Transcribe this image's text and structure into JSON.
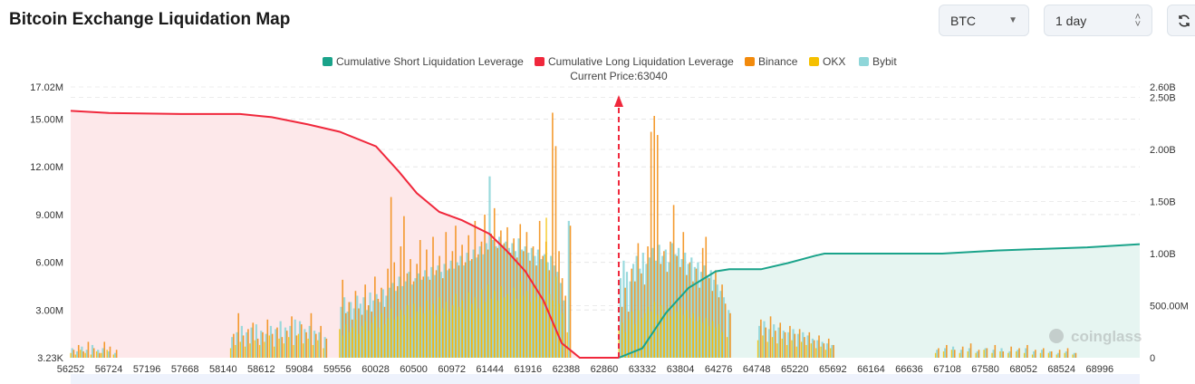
{
  "header": {
    "title": "Bitcoin Exchange Liquidation Map",
    "coin_select": "BTC",
    "range_select": "1 day",
    "refresh_icon": "refresh-icon"
  },
  "chart_data": {
    "type": "bar+line",
    "title": "Bitcoin Exchange Liquidation Map",
    "current_price_label": "Current Price:63040",
    "current_price": 63040,
    "watermark": "coinglass",
    "legend": [
      {
        "name": "Cumulative Short Liquidation Leverage",
        "color": "#1aa38a"
      },
      {
        "name": "Cumulative Long Liquidation Leverage",
        "color": "#f0283c"
      },
      {
        "name": "Binance",
        "color": "#f28a0c"
      },
      {
        "name": "OKX",
        "color": "#f5c000"
      },
      {
        "name": "Bybit",
        "color": "#8fd6d9"
      }
    ],
    "x_ticks": [
      "56252",
      "56724",
      "57196",
      "57668",
      "58140",
      "58612",
      "59084",
      "59556",
      "60028",
      "60500",
      "60972",
      "61444",
      "61916",
      "62388",
      "62860",
      "63332",
      "63804",
      "64276",
      "64748",
      "65220",
      "65692",
      "66164",
      "66636",
      "67108",
      "67580",
      "68052",
      "68524",
      "68996"
    ],
    "xlim": [
      56252,
      69492
    ],
    "y_left": {
      "ticks": [
        {
          "label": "3.23K",
          "value": 0.00323
        },
        {
          "label": "3.00M",
          "value": 3
        },
        {
          "label": "6.00M",
          "value": 6
        },
        {
          "label": "9.00M",
          "value": 9
        },
        {
          "label": "12.00M",
          "value": 12
        },
        {
          "label": "15.00M",
          "value": 15
        },
        {
          "label": "17.02M",
          "value": 17.02
        }
      ],
      "ylim": [
        0,
        17.02
      ],
      "unit": "M"
    },
    "y_right": {
      "ticks": [
        {
          "label": "0",
          "value": 0
        },
        {
          "label": "500.00M",
          "value": 0.5
        },
        {
          "label": "1.00B",
          "value": 1
        },
        {
          "label": "1.50B",
          "value": 1.5
        },
        {
          "label": "2.00B",
          "value": 2
        },
        {
          "label": "2.50B",
          "value": 2.5
        },
        {
          "label": "2.60B",
          "value": 2.6
        }
      ],
      "ylim": [
        0,
        2.6
      ],
      "unit": "B"
    },
    "long_cumulative": [
      [
        56252,
        2.37
      ],
      [
        56724,
        2.35
      ],
      [
        57620,
        2.34
      ],
      [
        58350,
        2.34
      ],
      [
        58743,
        2.31
      ],
      [
        59192,
        2.24
      ],
      [
        59584,
        2.17
      ],
      [
        60033,
        2.03
      ],
      [
        60314,
        1.79
      ],
      [
        60538,
        1.58
      ],
      [
        60818,
        1.4
      ],
      [
        61099,
        1.32
      ],
      [
        61436,
        1.19
      ],
      [
        61660,
        1.02
      ],
      [
        61884,
        0.83
      ],
      [
        62108,
        0.55
      ],
      [
        62333,
        0.14
      ],
      [
        62557,
        0.0
      ],
      [
        63040,
        0.0
      ]
    ],
    "short_cumulative": [
      [
        63040,
        0.0
      ],
      [
        63332,
        0.09
      ],
      [
        63624,
        0.43
      ],
      [
        63904,
        0.67
      ],
      [
        64241,
        0.83
      ],
      [
        64409,
        0.85
      ],
      [
        64802,
        0.85
      ],
      [
        65138,
        0.91
      ],
      [
        65475,
        0.98
      ],
      [
        65587,
        1.0
      ],
      [
        67046,
        1.0
      ],
      [
        67719,
        1.03
      ],
      [
        68841,
        1.06
      ],
      [
        69492,
        1.09
      ]
    ],
    "bars_columns": [
      "price",
      "binance",
      "okx",
      "bybit"
    ],
    "bars": [
      [
        56270,
        0.5,
        0.3,
        0.6
      ],
      [
        56330,
        0.8,
        0.2,
        0.4
      ],
      [
        56390,
        0.4,
        0.5,
        0.7
      ],
      [
        56450,
        1.0,
        0.3,
        0.5
      ],
      [
        56520,
        0.6,
        0.2,
        0.8
      ],
      [
        56590,
        0.3,
        0.4,
        0.5
      ],
      [
        56650,
        1.0,
        0.3,
        0.6
      ],
      [
        56720,
        0.7,
        0.5,
        0.4
      ],
      [
        56800,
        0.5,
        0.2,
        0.3
      ],
      [
        58250,
        1.5,
        0.6,
        1.3
      ],
      [
        58310,
        2.8,
        0.8,
        1.6
      ],
      [
        58370,
        1.4,
        1.0,
        2.0
      ],
      [
        58430,
        1.8,
        0.7,
        1.6
      ],
      [
        58490,
        2.2,
        0.9,
        1.9
      ],
      [
        58550,
        1.2,
        1.1,
        2.1
      ],
      [
        58610,
        1.6,
        0.8,
        1.7
      ],
      [
        58670,
        2.4,
        1.0,
        1.5
      ],
      [
        58730,
        1.5,
        1.4,
        2.0
      ],
      [
        58790,
        1.9,
        0.7,
        1.8
      ],
      [
        58850,
        1.3,
        1.2,
        2.3
      ],
      [
        58910,
        1.7,
        0.9,
        1.9
      ],
      [
        58970,
        2.6,
        1.3,
        2.0
      ],
      [
        59030,
        1.4,
        0.8,
        2.4
      ],
      [
        59090,
        2.1,
        1.5,
        2.3
      ],
      [
        59150,
        1.6,
        0.9,
        1.8
      ],
      [
        59210,
        2.8,
        1.2,
        2.0
      ],
      [
        59270,
        1.5,
        0.8,
        1.7
      ],
      [
        59330,
        2.0,
        1.1,
        1.6
      ],
      [
        59400,
        1.2,
        0.6,
        1.3
      ],
      [
        59600,
        4.9,
        1.8,
        3.2
      ],
      [
        59640,
        2.8,
        1.4,
        3.8
      ],
      [
        59680,
        3.5,
        2.1,
        2.9
      ],
      [
        59720,
        2.4,
        1.6,
        3.5
      ],
      [
        59760,
        4.2,
        1.9,
        3.1
      ],
      [
        59800,
        3.1,
        2.4,
        3.9
      ],
      [
        59840,
        2.7,
        1.5,
        3.4
      ],
      [
        59880,
        4.6,
        2.0,
        3.8
      ],
      [
        59920,
        3.3,
        2.3,
        3.0
      ],
      [
        59960,
        2.9,
        1.7,
        4.1
      ],
      [
        60000,
        5.1,
        2.2,
        3.6
      ],
      [
        60040,
        3.7,
        2.6,
        4.0
      ],
      [
        60080,
        4.4,
        1.9,
        3.5
      ],
      [
        60120,
        3.2,
        2.8,
        4.3
      ],
      [
        60160,
        5.6,
        2.1,
        3.9
      ],
      [
        60200,
        10.1,
        2.5,
        4.4
      ],
      [
        60240,
        6.0,
        3.1,
        4.7
      ],
      [
        60280,
        4.5,
        2.4,
        4.2
      ],
      [
        60320,
        7.0,
        2.6,
        5.1
      ],
      [
        60360,
        8.9,
        3.0,
        4.5
      ],
      [
        60400,
        5.3,
        2.7,
        4.8
      ],
      [
        60440,
        6.2,
        3.3,
        5.4
      ],
      [
        60480,
        4.8,
        2.5,
        4.6
      ],
      [
        60520,
        5.9,
        3.4,
        5.0
      ],
      [
        60560,
        7.4,
        2.9,
        5.3
      ],
      [
        60600,
        5.1,
        3.2,
        4.9
      ],
      [
        60640,
        6.8,
        2.8,
        5.5
      ],
      [
        60680,
        4.9,
        3.6,
        5.1
      ],
      [
        60720,
        7.6,
        3.0,
        5.7
      ],
      [
        60760,
        5.5,
        3.4,
        5.2
      ],
      [
        60800,
        6.4,
        2.7,
        5.8
      ],
      [
        60840,
        5.0,
        3.8,
        5.4
      ],
      [
        60880,
        7.9,
        3.1,
        5.9
      ],
      [
        60920,
        5.6,
        3.5,
        5.5
      ],
      [
        60960,
        6.7,
        2.9,
        6.1
      ],
      [
        61000,
        8.3,
        3.3,
        5.6
      ],
      [
        61040,
        5.8,
        4.0,
        6.0
      ],
      [
        61080,
        7.1,
        3.2,
        6.4
      ],
      [
        61120,
        6.0,
        3.6,
        5.8
      ],
      [
        61160,
        7.7,
        3.0,
        6.6
      ],
      [
        61200,
        6.2,
        4.1,
        6.1
      ],
      [
        61240,
        8.6,
        3.4,
        6.8
      ],
      [
        61280,
        6.5,
        3.8,
        6.3
      ],
      [
        61320,
        7.3,
        3.1,
        7.0
      ],
      [
        61360,
        9.0,
        4.3,
        6.5
      ],
      [
        61400,
        6.8,
        3.5,
        7.2
      ],
      [
        61440,
        7.8,
        4.6,
        11.4
      ],
      [
        61480,
        9.4,
        3.7,
        7.4
      ],
      [
        61520,
        6.9,
        4.2,
        7.0
      ],
      [
        61560,
        8.0,
        3.6,
        7.6
      ],
      [
        61600,
        7.2,
        4.5,
        7.1
      ],
      [
        61640,
        8.2,
        3.8,
        7.3
      ],
      [
        61680,
        6.6,
        4.0,
        6.9
      ],
      [
        61720,
        7.5,
        3.4,
        7.2
      ],
      [
        61760,
        6.3,
        4.4,
        6.7
      ],
      [
        61800,
        8.4,
        3.7,
        7.5
      ],
      [
        61840,
        6.7,
        4.8,
        6.8
      ],
      [
        61880,
        7.9,
        3.9,
        7.0
      ],
      [
        61920,
        6.1,
        4.2,
        6.6
      ],
      [
        61960,
        7.0,
        3.5,
        6.9
      ],
      [
        62000,
        5.8,
        4.6,
        6.4
      ],
      [
        62040,
        8.6,
        3.8,
        6.8
      ],
      [
        62080,
        6.4,
        4.1,
        6.2
      ],
      [
        62120,
        7.3,
        3.4,
        6.5
      ],
      [
        62160,
        5.5,
        8.8,
        6.0
      ],
      [
        62200,
        15.4,
        4.0,
        6.4
      ],
      [
        62240,
        13.3,
        3.6,
        5.8
      ],
      [
        62280,
        6.7,
        5.1,
        5.4
      ],
      [
        62320,
        5.0,
        3.4,
        4.7
      ],
      [
        62360,
        3.9,
        2.8,
        3.6
      ],
      [
        62420,
        8.3,
        1.6,
        8.6
      ],
      [
        63060,
        3.2,
        1.8,
        5.0
      ],
      [
        63100,
        4.4,
        2.2,
        6.1
      ],
      [
        63140,
        2.9,
        1.6,
        5.4
      ],
      [
        63180,
        5.6,
        2.4,
        4.8
      ],
      [
        63220,
        4.8,
        2.9,
        5.9
      ],
      [
        63260,
        7.2,
        2.1,
        6.4
      ],
      [
        63300,
        5.3,
        3.0,
        5.6
      ],
      [
        63340,
        4.6,
        2.5,
        6.6
      ],
      [
        63380,
        7.0,
        2.8,
        5.9
      ],
      [
        63420,
        14.2,
        3.2,
        6.3
      ],
      [
        63460,
        15.2,
        2.9,
        6.9
      ],
      [
        63500,
        14.0,
        3.5,
        6.1
      ],
      [
        63540,
        5.9,
        2.7,
        7.1
      ],
      [
        63580,
        6.7,
        3.3,
        6.4
      ],
      [
        63620,
        5.4,
        2.8,
        6.8
      ],
      [
        63660,
        7.3,
        3.1,
        6.0
      ],
      [
        63700,
        9.6,
        2.6,
        7.2
      ],
      [
        63740,
        6.4,
        3.4,
        6.5
      ],
      [
        63780,
        5.7,
        2.9,
        6.9
      ],
      [
        63820,
        7.9,
        3.2,
        6.2
      ],
      [
        63860,
        5.2,
        2.7,
        6.6
      ],
      [
        63900,
        6.0,
        3.0,
        5.9
      ],
      [
        63940,
        4.8,
        2.5,
        6.3
      ],
      [
        63980,
        5.6,
        2.8,
        5.7
      ],
      [
        64020,
        4.4,
        2.3,
        6.0
      ],
      [
        64060,
        6.9,
        2.6,
        5.4
      ],
      [
        64100,
        7.6,
        2.2,
        5.8
      ],
      [
        64140,
        5.0,
        2.5,
        5.1
      ],
      [
        64180,
        4.2,
        2.0,
        5.5
      ],
      [
        64220,
        5.5,
        2.3,
        4.9
      ],
      [
        64260,
        3.8,
        1.9,
        4.6
      ],
      [
        64300,
        4.6,
        2.1,
        4.2
      ],
      [
        64340,
        3.4,
        1.6,
        3.8
      ],
      [
        64400,
        2.8,
        1.3,
        3.0
      ],
      [
        64780,
        2.4,
        1.1,
        2.0
      ],
      [
        64840,
        1.9,
        1.4,
        2.3
      ],
      [
        64900,
        2.6,
        1.0,
        1.8
      ],
      [
        64960,
        1.7,
        1.3,
        2.1
      ],
      [
        65020,
        2.2,
        0.9,
        1.9
      ],
      [
        65080,
        1.6,
        1.2,
        1.7
      ],
      [
        65140,
        2.0,
        0.8,
        1.6
      ],
      [
        65200,
        1.5,
        1.1,
        1.8
      ],
      [
        65260,
        1.8,
        0.7,
        1.5
      ],
      [
        65320,
        1.3,
        1.0,
        1.6
      ],
      [
        65380,
        1.6,
        0.8,
        1.4
      ],
      [
        65440,
        1.1,
        0.9,
        1.2
      ],
      [
        65500,
        1.4,
        0.6,
        1.1
      ],
      [
        65560,
        0.9,
        0.7,
        1.0
      ],
      [
        65620,
        1.2,
        0.5,
        0.9
      ],
      [
        65680,
        0.8,
        0.6,
        0.8
      ],
      [
        66980,
        0.6,
        0.3,
        0.5
      ],
      [
        67080,
        0.8,
        0.4,
        0.6
      ],
      [
        67180,
        0.5,
        0.5,
        0.7
      ],
      [
        67280,
        0.7,
        0.3,
        0.5
      ],
      [
        67380,
        0.9,
        0.4,
        0.6
      ],
      [
        67480,
        0.5,
        0.3,
        0.4
      ],
      [
        67580,
        0.6,
        0.5,
        0.6
      ],
      [
        67680,
        0.8,
        0.3,
        0.5
      ],
      [
        67780,
        0.4,
        0.4,
        0.6
      ],
      [
        67880,
        0.7,
        0.3,
        0.4
      ],
      [
        67980,
        0.6,
        0.4,
        0.5
      ],
      [
        68080,
        0.8,
        0.3,
        0.6
      ],
      [
        68180,
        0.5,
        0.2,
        0.4
      ],
      [
        68280,
        0.6,
        0.3,
        0.5
      ],
      [
        68380,
        0.4,
        0.3,
        0.4
      ],
      [
        68480,
        0.5,
        0.2,
        0.3
      ],
      [
        68580,
        0.6,
        0.3,
        0.4
      ],
      [
        68680,
        0.3,
        0.2,
        0.3
      ]
    ]
  }
}
